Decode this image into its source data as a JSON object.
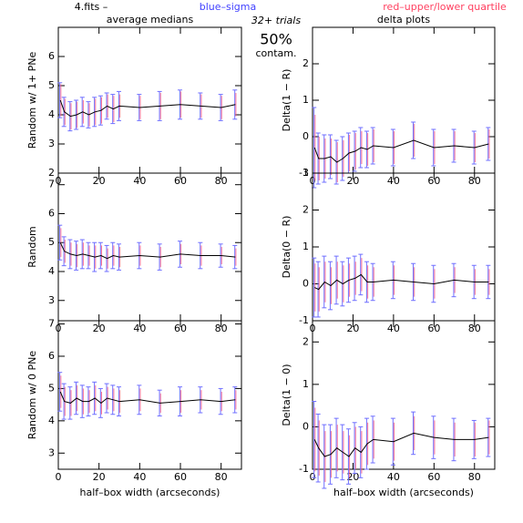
{
  "header": {
    "file": "4.fits  –",
    "sigma_note": "blue–sigma",
    "quartile_note": "red–upper/lower quartile",
    "trials": "32+ trials",
    "contamination": "50%",
    "contamination_label": "contam."
  },
  "chart_data": [
    {
      "type": "line",
      "title": "average medians",
      "ylabel": "Random w/ 1+ PNe",
      "color": "#000000",
      "sigma_color": "#6f6fff",
      "quartile_color": "#ff5f86",
      "x": [
        1,
        3,
        6,
        9,
        12,
        15,
        18,
        21,
        24,
        27,
        30,
        40,
        50,
        60,
        70,
        80,
        87
      ],
      "xlim": [
        0,
        90
      ],
      "xticks": [
        0,
        20,
        40,
        60,
        80
      ],
      "ylim": [
        2,
        7
      ],
      "yticks": [
        2,
        3,
        4,
        5,
        6
      ],
      "values": [
        4.5,
        4.1,
        3.95,
        4.0,
        4.1,
        4.0,
        4.1,
        4.15,
        4.3,
        4.2,
        4.3,
        4.25,
        4.3,
        4.35,
        4.3,
        4.25,
        4.35
      ],
      "sigma": [
        0.6,
        0.5,
        0.5,
        0.5,
        0.5,
        0.45,
        0.5,
        0.5,
        0.45,
        0.5,
        0.5,
        0.45,
        0.5,
        0.5,
        0.45,
        0.45,
        0.5
      ],
      "quartile": [
        0.55,
        0.45,
        0.45,
        0.45,
        0.4,
        0.4,
        0.45,
        0.45,
        0.4,
        0.45,
        0.4,
        0.4,
        0.45,
        0.45,
        0.4,
        0.4,
        0.4
      ]
    },
    {
      "type": "line",
      "title": "delta plots",
      "ylabel": "Delta(1 − R)",
      "color": "#000000",
      "sigma_color": "#6f6fff",
      "quartile_color": "#ff5f86",
      "x": [
        1,
        3,
        6,
        9,
        12,
        15,
        18,
        21,
        24,
        27,
        30,
        40,
        50,
        60,
        70,
        80,
        87
      ],
      "xlim": [
        0,
        90
      ],
      "xticks": [
        0,
        20,
        40,
        60,
        80
      ],
      "ylim": [
        -1,
        3
      ],
      "yticks": [
        -1,
        0,
        1,
        2
      ],
      "values": [
        -0.3,
        -0.6,
        -0.6,
        -0.55,
        -0.7,
        -0.6,
        -0.45,
        -0.4,
        -0.3,
        -0.35,
        -0.25,
        -0.3,
        -0.1,
        -0.3,
        -0.25,
        -0.3,
        -0.2
      ],
      "sigma": [
        1.1,
        0.7,
        0.65,
        0.6,
        0.6,
        0.6,
        0.55,
        0.55,
        0.55,
        0.5,
        0.5,
        0.5,
        0.5,
        0.5,
        0.45,
        0.45,
        0.45
      ],
      "quartile": [
        0.9,
        0.6,
        0.55,
        0.5,
        0.55,
        0.5,
        0.5,
        0.5,
        0.45,
        0.45,
        0.45,
        0.45,
        0.45,
        0.45,
        0.4,
        0.4,
        0.4
      ]
    },
    {
      "type": "line",
      "ylabel": "Random",
      "color": "#000000",
      "sigma_color": "#6f6fff",
      "quartile_color": "#ff5f86",
      "x": [
        1,
        3,
        6,
        9,
        12,
        15,
        18,
        21,
        24,
        27,
        30,
        40,
        50,
        60,
        70,
        80,
        87
      ],
      "xlim": [
        0,
        90
      ],
      "xticks": [
        0,
        20,
        40,
        60,
        80
      ],
      "ylim": [
        2.3,
        7.4
      ],
      "yticks": [
        3,
        4,
        5,
        6,
        7
      ],
      "values": [
        5.0,
        4.7,
        4.6,
        4.55,
        4.6,
        4.55,
        4.5,
        4.55,
        4.45,
        4.55,
        4.5,
        4.55,
        4.5,
        4.6,
        4.55,
        4.55,
        4.5
      ],
      "sigma": [
        0.6,
        0.5,
        0.5,
        0.5,
        0.5,
        0.45,
        0.5,
        0.45,
        0.45,
        0.45,
        0.45,
        0.45,
        0.45,
        0.45,
        0.45,
        0.4,
        0.4
      ],
      "quartile": [
        0.5,
        0.4,
        0.4,
        0.4,
        0.4,
        0.35,
        0.4,
        0.35,
        0.35,
        0.35,
        0.35,
        0.35,
        0.35,
        0.35,
        0.35,
        0.3,
        0.3
      ]
    },
    {
      "type": "line",
      "ylabel": "Delta(0 − R)",
      "color": "#000000",
      "sigma_color": "#6f6fff",
      "quartile_color": "#ff5f86",
      "x": [
        1,
        3,
        6,
        9,
        12,
        15,
        18,
        21,
        24,
        27,
        30,
        40,
        50,
        60,
        70,
        80,
        87
      ],
      "xlim": [
        0,
        90
      ],
      "xticks": [
        0,
        20,
        40,
        60,
        80
      ],
      "ylim": [
        -1,
        3
      ],
      "yticks": [
        -1,
        0,
        1,
        2,
        3
      ],
      "values": [
        -0.1,
        -0.15,
        0.05,
        -0.05,
        0.1,
        0.0,
        0.1,
        0.15,
        0.25,
        0.05,
        0.05,
        0.1,
        0.05,
        0.0,
        0.1,
        0.05,
        0.05
      ],
      "sigma": [
        0.8,
        0.75,
        0.7,
        0.65,
        0.65,
        0.6,
        0.6,
        0.6,
        0.55,
        0.55,
        0.5,
        0.5,
        0.5,
        0.5,
        0.45,
        0.45,
        0.45
      ],
      "quartile": [
        0.65,
        0.6,
        0.55,
        0.5,
        0.5,
        0.5,
        0.45,
        0.45,
        0.45,
        0.45,
        0.4,
        0.4,
        0.4,
        0.4,
        0.35,
        0.35,
        0.35
      ]
    },
    {
      "type": "line",
      "ylabel": "Random w/ 0 PNe",
      "xlabel": "half–box width (arcseconds)",
      "color": "#000000",
      "sigma_color": "#6f6fff",
      "quartile_color": "#ff5f86",
      "x": [
        1,
        3,
        6,
        9,
        12,
        15,
        18,
        21,
        24,
        27,
        30,
        40,
        50,
        60,
        70,
        80,
        87
      ],
      "xlim": [
        0,
        90
      ],
      "xticks": [
        0,
        20,
        40,
        60,
        80
      ],
      "ylim": [
        2.5,
        7.1
      ],
      "yticks": [
        3,
        4,
        5,
        6,
        7
      ],
      "values": [
        4.9,
        4.6,
        4.55,
        4.7,
        4.6,
        4.6,
        4.7,
        4.55,
        4.7,
        4.65,
        4.6,
        4.65,
        4.55,
        4.6,
        4.65,
        4.6,
        4.65
      ],
      "sigma": [
        0.6,
        0.55,
        0.5,
        0.5,
        0.5,
        0.45,
        0.5,
        0.45,
        0.45,
        0.45,
        0.45,
        0.45,
        0.4,
        0.45,
        0.4,
        0.4,
        0.4
      ],
      "quartile": [
        0.5,
        0.45,
        0.4,
        0.4,
        0.4,
        0.35,
        0.4,
        0.35,
        0.35,
        0.35,
        0.35,
        0.35,
        0.3,
        0.35,
        0.3,
        0.3,
        0.3
      ]
    },
    {
      "type": "line",
      "ylabel": "Delta(1 − 0)",
      "xlabel": "half–box width (arcseconds)",
      "color": "#000000",
      "sigma_color": "#6f6fff",
      "quartile_color": "#ff5f86",
      "x": [
        1,
        3,
        6,
        9,
        12,
        15,
        18,
        21,
        24,
        27,
        30,
        40,
        50,
        60,
        70,
        80,
        87
      ],
      "xlim": [
        0,
        90
      ],
      "xticks": [
        0,
        20,
        40,
        60,
        80
      ],
      "ylim": [
        -1,
        2.5
      ],
      "yticks": [
        -1,
        0,
        1,
        2
      ],
      "values": [
        -0.3,
        -0.5,
        -0.7,
        -0.65,
        -0.5,
        -0.6,
        -0.7,
        -0.5,
        -0.6,
        -0.4,
        -0.3,
        -0.35,
        -0.15,
        -0.25,
        -0.3,
        -0.3,
        -0.25
      ],
      "sigma": [
        0.9,
        0.8,
        0.75,
        0.7,
        0.7,
        0.65,
        0.65,
        0.6,
        0.6,
        0.6,
        0.55,
        0.55,
        0.5,
        0.5,
        0.5,
        0.45,
        0.45
      ],
      "quartile": [
        0.75,
        0.65,
        0.6,
        0.55,
        0.55,
        0.5,
        0.5,
        0.5,
        0.5,
        0.5,
        0.45,
        0.45,
        0.4,
        0.4,
        0.4,
        0.4,
        0.4
      ]
    }
  ]
}
